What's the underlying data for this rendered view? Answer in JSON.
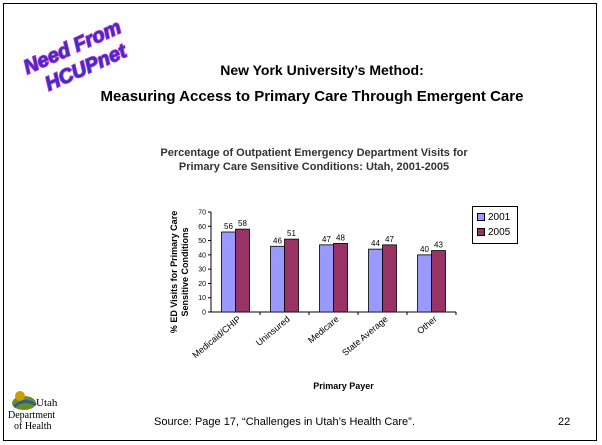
{
  "stamp": {
    "line1": "Need From",
    "line2": "HCUPnet"
  },
  "slide_title": {
    "line1": "New York University’s Method:",
    "line2": "Measuring Access to Primary Care Through Emergent Care"
  },
  "logo": {
    "line1": "Utah",
    "line2": "Department",
    "line3": "of Health"
  },
  "source": "Source: Page 17, “Challenges in Utah’s Health Care”.",
  "page_number": "22",
  "colors": {
    "series_2001": "#9999ff",
    "series_2005": "#993366",
    "stamp_fill": "#3333cc",
    "stamp_outline": "#cc33cc"
  },
  "chart_data": {
    "type": "bar",
    "title": "Percentage of Outpatient Emergency Department Visits for",
    "subtitle": "Primary Care Sensitive Conditions: Utah, 2001-2005",
    "xlabel": "Primary Payer",
    "ylabel": "% ED Visits for Primary Care Sensitive Conditions",
    "ylim": [
      0,
      70
    ],
    "yticks": [
      "0",
      "10",
      "20",
      "30",
      "40",
      "50",
      "60",
      "70"
    ],
    "categories": [
      "Medicaid/CHIP",
      "Uninsured",
      "Medicare",
      "State Average",
      "Other"
    ],
    "series": [
      {
        "name": "2001",
        "values": [
          56,
          46,
          47,
          44,
          40
        ]
      },
      {
        "name": "2005",
        "values": [
          58,
          51,
          48,
          47,
          43
        ]
      }
    ],
    "legend_position": "right",
    "grid": false
  }
}
